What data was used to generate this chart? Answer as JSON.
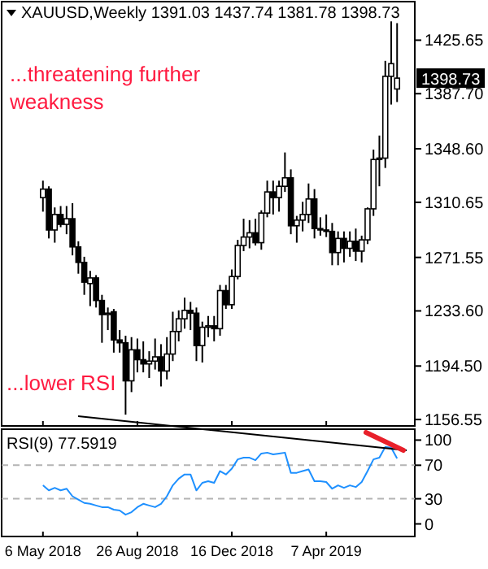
{
  "chart_data": [
    {
      "type": "candlestick",
      "title": "XAUUSD,Weekly 1391.03 1437.74 1381.78 1398.73",
      "x": [
        "2018-05-06",
        "2018-05-13",
        "2018-05-20",
        "2018-05-27",
        "2018-06-03",
        "2018-06-10",
        "2018-06-17",
        "2018-06-24",
        "2018-07-01",
        "2018-07-08",
        "2018-07-15",
        "2018-07-22",
        "2018-07-29",
        "2018-08-05",
        "2018-08-12",
        "2018-08-19",
        "2018-08-26",
        "2018-09-02",
        "2018-09-09",
        "2018-09-16",
        "2018-09-23",
        "2018-09-30",
        "2018-10-07",
        "2018-10-14",
        "2018-10-21",
        "2018-10-28",
        "2018-11-04",
        "2018-11-11",
        "2018-11-18",
        "2018-11-25",
        "2018-12-02",
        "2018-12-09",
        "2018-12-16",
        "2018-12-23",
        "2018-12-30",
        "2019-01-06",
        "2019-01-13",
        "2019-01-20",
        "2019-01-27",
        "2019-02-03",
        "2019-02-10",
        "2019-02-17",
        "2019-02-24",
        "2019-03-03",
        "2019-03-10",
        "2019-03-17",
        "2019-03-24",
        "2019-03-31",
        "2019-04-07",
        "2019-04-14",
        "2019-04-21",
        "2019-04-28",
        "2019-05-05",
        "2019-05-12",
        "2019-05-19",
        "2019-05-26",
        "2019-06-02",
        "2019-06-09",
        "2019-06-16",
        "2019-06-23",
        "2019-06-30"
      ],
      "ohlc": [
        [
          1314,
          1326,
          1304,
          1320
        ],
        [
          1320,
          1322,
          1285,
          1291
        ],
        [
          1291,
          1307,
          1282,
          1302
        ],
        [
          1302,
          1308,
          1293,
          1295
        ],
        [
          1295,
          1308,
          1288,
          1299
        ],
        [
          1299,
          1310,
          1273,
          1279
        ],
        [
          1279,
          1283,
          1260,
          1268
        ],
        [
          1268,
          1272,
          1245,
          1254
        ],
        [
          1253,
          1262,
          1237,
          1257
        ],
        [
          1257,
          1259,
          1236,
          1241
        ],
        [
          1241,
          1245,
          1211,
          1231
        ],
        [
          1231,
          1236,
          1220,
          1232
        ],
        [
          1233,
          1235,
          1204,
          1213
        ],
        [
          1213,
          1220,
          1204,
          1211
        ],
        [
          1211,
          1216,
          1160,
          1184
        ],
        [
          1184,
          1215,
          1176,
          1206
        ],
        [
          1206,
          1214,
          1190,
          1199
        ],
        [
          1199,
          1212,
          1190,
          1196
        ],
        [
          1196,
          1205,
          1186,
          1198
        ],
        [
          1198,
          1214,
          1192,
          1201
        ],
        [
          1201,
          1210,
          1180,
          1191
        ],
        [
          1191,
          1215,
          1185,
          1203
        ],
        [
          1203,
          1233,
          1198,
          1219
        ],
        [
          1219,
          1234,
          1212,
          1228
        ],
        [
          1228,
          1243,
          1221,
          1234
        ],
        [
          1234,
          1240,
          1220,
          1232
        ],
        [
          1232,
          1236,
          1198,
          1209
        ],
        [
          1209,
          1226,
          1197,
          1222
        ],
        [
          1222,
          1230,
          1215,
          1223
        ],
        [
          1223,
          1230,
          1212,
          1221
        ],
        [
          1221,
          1252,
          1216,
          1248
        ],
        [
          1248,
          1252,
          1235,
          1238
        ],
        [
          1238,
          1263,
          1235,
          1258
        ],
        [
          1258,
          1284,
          1256,
          1280
        ],
        [
          1280,
          1299,
          1276,
          1286
        ],
        [
          1286,
          1298,
          1278,
          1289
        ],
        [
          1289,
          1299,
          1280,
          1282
        ],
        [
          1282,
          1305,
          1277,
          1303
        ],
        [
          1303,
          1326,
          1300,
          1318
        ],
        [
          1318,
          1326,
          1302,
          1314
        ],
        [
          1314,
          1326,
          1304,
          1322
        ],
        [
          1322,
          1346,
          1318,
          1328
        ],
        [
          1328,
          1334,
          1288,
          1294
        ],
        [
          1294,
          1301,
          1282,
          1298
        ],
        [
          1298,
          1311,
          1290,
          1302
        ],
        [
          1302,
          1324,
          1296,
          1313
        ],
        [
          1313,
          1320,
          1285,
          1292
        ],
        [
          1292,
          1300,
          1287,
          1291
        ],
        [
          1291,
          1302,
          1286,
          1290
        ],
        [
          1290,
          1296,
          1266,
          1275
        ],
        [
          1275,
          1290,
          1266,
          1285
        ],
        [
          1285,
          1290,
          1268,
          1278
        ],
        [
          1278,
          1290,
          1272,
          1283
        ],
        [
          1283,
          1292,
          1269,
          1276
        ],
        [
          1276,
          1287,
          1268,
          1284
        ],
        [
          1284,
          1307,
          1281,
          1306
        ],
        [
          1306,
          1348,
          1301,
          1341
        ],
        [
          1341,
          1358,
          1322,
          1342
        ],
        [
          1342,
          1411,
          1335,
          1400
        ],
        [
          1400,
          1439,
          1380,
          1409
        ],
        [
          1391.03,
          1437.74,
          1381.78,
          1398.73
        ]
      ],
      "xlim": [
        "2018-03-18",
        "2019-07-21"
      ],
      "xticks": [
        {
          "value": "2018-05-06",
          "label": null
        },
        {
          "value": "2018-08-26",
          "label": null
        },
        {
          "value": "2018-12-16",
          "label": null
        },
        {
          "value": "2019-04-07",
          "label": null
        }
      ],
      "ylim": [
        1152,
        1453
      ],
      "yticks": [
        1425.65,
        {
          "value": 1387.7,
          "label": "1387.70"
        },
        {
          "value": 1348.6,
          "label": "1348.60"
        },
        1310.65,
        1271.55,
        {
          "value": 1233.6,
          "label": "1233.60"
        },
        {
          "value": 1194.5,
          "label": "1194.50"
        },
        1156.55
      ],
      "tick_labels": "y",
      "annotations": [
        "...threatening further weakness",
        "...lower RSI",
        "1398.73"
      ]
    },
    {
      "type": "line",
      "title": "RSI(9) 77.5919",
      "x": [
        "2018-05-06",
        "2018-05-13",
        "2018-05-20",
        "2018-05-27",
        "2018-06-03",
        "2018-06-10",
        "2018-06-17",
        "2018-06-24",
        "2018-07-01",
        "2018-07-08",
        "2018-07-15",
        "2018-07-22",
        "2018-07-29",
        "2018-08-05",
        "2018-08-12",
        "2018-08-19",
        "2018-08-26",
        "2018-09-02",
        "2018-09-09",
        "2018-09-16",
        "2018-09-23",
        "2018-09-30",
        "2018-10-07",
        "2018-10-14",
        "2018-10-21",
        "2018-10-28",
        "2018-11-04",
        "2018-11-11",
        "2018-11-18",
        "2018-11-25",
        "2018-12-02",
        "2018-12-09",
        "2018-12-16",
        "2018-12-23",
        "2018-12-30",
        "2019-01-06",
        "2019-01-13",
        "2019-01-20",
        "2019-01-27",
        "2019-02-03",
        "2019-02-10",
        "2019-02-17",
        "2019-02-24",
        "2019-03-03",
        "2019-03-10",
        "2019-03-17",
        "2019-03-24",
        "2019-03-31",
        "2019-04-07",
        "2019-04-14",
        "2019-04-21",
        "2019-04-28",
        "2019-05-05",
        "2019-05-12",
        "2019-05-19",
        "2019-05-26",
        "2019-06-02",
        "2019-06-09",
        "2019-06-16",
        "2019-06-23",
        "2019-06-30"
      ],
      "series": [
        {
          "color": "#1e90ff",
          "values": [
            46,
            40,
            43,
            40,
            42,
            33,
            29,
            25,
            24,
            22,
            20,
            20,
            17,
            16,
            11,
            14,
            20,
            24,
            22,
            20,
            24,
            33,
            46,
            54,
            59,
            59,
            40,
            49,
            51,
            49,
            63,
            59,
            66,
            77,
            79,
            79,
            76,
            84,
            85,
            83,
            84,
            85,
            61,
            61,
            63,
            65,
            51,
            51,
            50,
            42,
            46,
            43,
            46,
            44,
            50,
            63,
            77,
            79,
            92,
            91,
            78
          ]
        }
      ],
      "xlim": [
        "2018-03-18",
        "2019-07-21"
      ],
      "xticks": [
        {
          "value": "2018-05-06",
          "label": "6 May 2018"
        },
        {
          "value": "2018-08-26",
          "label": "26 Aug 2018"
        },
        {
          "value": "2018-12-16",
          "label": "16 Dec 2018"
        },
        {
          "value": "2019-04-07",
          "label": "7 Apr 2019"
        }
      ],
      "ylim": [
        -15,
        113
      ],
      "yticks": [
        0,
        30,
        70,
        100
      ],
      "ref_lines": [
        {
          "axis": "y",
          "value": 70,
          "color": "#b4b4b4",
          "line_style": "dashed"
        },
        {
          "axis": "y",
          "value": 30,
          "color": "#b4b4b4",
          "line_style": "dashed"
        }
      ],
      "grid": false,
      "marker": "none",
      "line_style": "solid"
    }
  ]
}
